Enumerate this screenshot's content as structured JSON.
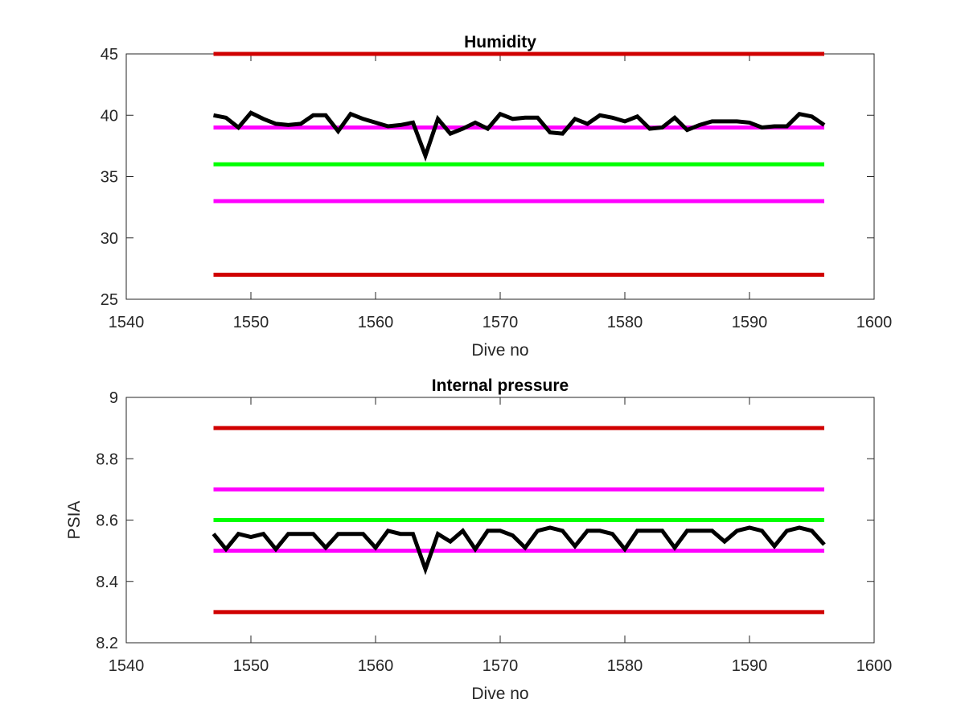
{
  "chart_data": [
    {
      "type": "line",
      "title": "Humidity",
      "xlabel": "Dive no",
      "ylabel": "",
      "xlim": [
        1540,
        1600
      ],
      "ylim": [
        25,
        45
      ],
      "xticks": [
        1540,
        1550,
        1560,
        1570,
        1580,
        1590,
        1600
      ],
      "yticks": [
        25,
        30,
        35,
        40,
        45
      ],
      "grid": false,
      "thresholds": [
        {
          "value": 45,
          "x": [
            1547,
            1596
          ],
          "color": "#d00000"
        },
        {
          "value": 39,
          "x": [
            1547,
            1596
          ],
          "color": "#ff00ff"
        },
        {
          "value": 36,
          "x": [
            1547,
            1596
          ],
          "color": "#00ff00"
        },
        {
          "value": 33,
          "x": [
            1547,
            1596
          ],
          "color": "#ff00ff"
        },
        {
          "value": 27,
          "x": [
            1547,
            1596
          ],
          "color": "#d00000"
        }
      ],
      "series": [
        {
          "color": "#000000",
          "x": [
            1547,
            1548,
            1549,
            1550,
            1551,
            1552,
            1553,
            1554,
            1555,
            1556,
            1557,
            1558,
            1559,
            1560,
            1561,
            1562,
            1563,
            1564,
            1565,
            1566,
            1567,
            1568,
            1569,
            1570,
            1571,
            1572,
            1573,
            1574,
            1575,
            1576,
            1577,
            1578,
            1579,
            1580,
            1581,
            1582,
            1583,
            1584,
            1585,
            1586,
            1587,
            1588,
            1589,
            1590,
            1591,
            1592,
            1593,
            1594,
            1595,
            1596
          ],
          "y": [
            40.0,
            39.8,
            39.0,
            40.2,
            39.7,
            39.3,
            39.2,
            39.3,
            40.0,
            40.0,
            38.7,
            40.1,
            39.7,
            39.4,
            39.1,
            39.2,
            39.4,
            36.7,
            39.7,
            38.5,
            38.9,
            39.4,
            38.9,
            40.1,
            39.7,
            39.8,
            39.8,
            38.6,
            38.5,
            39.7,
            39.3,
            40.0,
            39.8,
            39.5,
            39.9,
            38.9,
            39.0,
            39.8,
            38.8,
            39.2,
            39.5,
            39.5,
            39.5,
            39.4,
            39.0,
            39.1,
            39.1,
            40.1,
            39.9,
            39.2
          ]
        }
      ]
    },
    {
      "type": "line",
      "title": "Internal pressure",
      "xlabel": "Dive no",
      "ylabel": "PSIA",
      "xlim": [
        1540,
        1600
      ],
      "ylim": [
        8.2,
        9
      ],
      "xticks": [
        1540,
        1550,
        1560,
        1570,
        1580,
        1590,
        1600
      ],
      "yticks": [
        8.2,
        8.4,
        8.6,
        8.8,
        9
      ],
      "grid": false,
      "thresholds": [
        {
          "value": 8.9,
          "x": [
            1547,
            1596
          ],
          "color": "#d00000"
        },
        {
          "value": 8.7,
          "x": [
            1547,
            1596
          ],
          "color": "#ff00ff"
        },
        {
          "value": 8.6,
          "x": [
            1547,
            1596
          ],
          "color": "#00ff00"
        },
        {
          "value": 8.5,
          "x": [
            1547,
            1596
          ],
          "color": "#ff00ff"
        },
        {
          "value": 8.3,
          "x": [
            1547,
            1596
          ],
          "color": "#d00000"
        }
      ],
      "series": [
        {
          "color": "#000000",
          "x": [
            1547,
            1548,
            1549,
            1550,
            1551,
            1552,
            1553,
            1554,
            1555,
            1556,
            1557,
            1558,
            1559,
            1560,
            1561,
            1562,
            1563,
            1564,
            1565,
            1566,
            1567,
            1568,
            1569,
            1570,
            1571,
            1572,
            1573,
            1574,
            1575,
            1576,
            1577,
            1578,
            1579,
            1580,
            1581,
            1582,
            1583,
            1584,
            1585,
            1586,
            1587,
            1588,
            1589,
            1590,
            1591,
            1592,
            1593,
            1594,
            1595,
            1596
          ],
          "y": [
            8.555,
            8.505,
            8.555,
            8.545,
            8.555,
            8.505,
            8.555,
            8.555,
            8.555,
            8.51,
            8.555,
            8.555,
            8.555,
            8.51,
            8.565,
            8.555,
            8.555,
            8.44,
            8.555,
            8.53,
            8.565,
            8.505,
            8.565,
            8.565,
            8.55,
            8.51,
            8.565,
            8.575,
            8.565,
            8.515,
            8.565,
            8.565,
            8.555,
            8.505,
            8.565,
            8.565,
            8.565,
            8.51,
            8.565,
            8.565,
            8.565,
            8.53,
            8.565,
            8.575,
            8.565,
            8.515,
            8.565,
            8.575,
            8.565,
            8.52
          ]
        }
      ]
    }
  ]
}
